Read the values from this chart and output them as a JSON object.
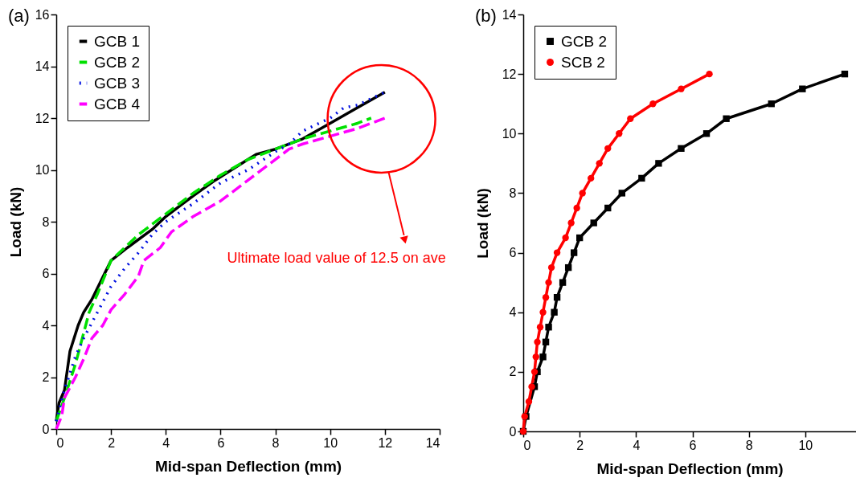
{
  "chart_data": [
    {
      "type": "line",
      "title": "(a)",
      "xlabel": "Mid-span Deflection (mm)",
      "ylabel": "Load (kN)",
      "xlim": [
        0,
        14
      ],
      "ylim": [
        0,
        16
      ],
      "xticks": [
        0,
        2,
        4,
        6,
        8,
        10,
        12,
        14
      ],
      "yticks": [
        0,
        2,
        4,
        6,
        8,
        10,
        12,
        14,
        16
      ],
      "legend": "top left",
      "annotations": [
        "Ultimate load value of 12.5 on ave"
      ],
      "series": [
        {
          "name": "GCB 1",
          "color": "#000000",
          "line_style": "solid",
          "x": [
            0,
            0.1,
            0.3,
            0.5,
            0.8,
            1,
            1.3,
            2,
            2.6,
            3.5,
            4,
            5,
            5.8,
            7,
            7.3,
            8,
            9,
            10,
            11,
            12
          ],
          "values": [
            0.3,
            1,
            1.5,
            3,
            4,
            4.5,
            5,
            6.5,
            7,
            7.7,
            8.2,
            9,
            9.6,
            10.4,
            10.6,
            10.8,
            11.2,
            11.8,
            12.4,
            13
          ]
        },
        {
          "name": "GCB 2",
          "color": "#00e000",
          "line_style": "dashed",
          "x": [
            0,
            0.3,
            0.7,
            1.2,
            1.5,
            2,
            2.5,
            3,
            4,
            5,
            6,
            7,
            8,
            9,
            10,
            11,
            11.5
          ],
          "values": [
            0.3,
            1.2,
            2.5,
            4.5,
            5.2,
            6.5,
            7,
            7.5,
            8.3,
            9.1,
            9.8,
            10.4,
            10.8,
            11.2,
            11.5,
            11.8,
            12
          ]
        },
        {
          "name": "GCB 3",
          "color": "#0010e0",
          "line_style": "dotted",
          "x": [
            0,
            0.3,
            0.7,
            1,
            1.5,
            2,
            2.5,
            3,
            3.5,
            4,
            5,
            6,
            7,
            8,
            8.5,
            9,
            10,
            10.5,
            11,
            12
          ],
          "values": [
            0.3,
            1.5,
            2.8,
            3.5,
            4.5,
            5.5,
            6.2,
            6.8,
            7.5,
            8,
            8.7,
            9.5,
            10,
            10.7,
            11,
            11.5,
            12,
            12.4,
            12.5,
            13
          ]
        },
        {
          "name": "GCB 4",
          "color": "#ff00ff",
          "line_style": "dashed",
          "x": [
            0,
            0.2,
            0.3,
            0.7,
            1,
            1.3,
            1.7,
            2,
            2.5,
            3,
            3.2,
            3.8,
            4.2,
            5,
            6,
            7,
            8,
            8.5,
            9,
            10,
            11,
            12
          ],
          "values": [
            0,
            0.5,
            1.2,
            2,
            2.7,
            3.5,
            4,
            4.6,
            5.2,
            5.9,
            6.5,
            7,
            7.6,
            8.2,
            8.8,
            9.6,
            10.4,
            10.8,
            11,
            11.3,
            11.6,
            12
          ]
        }
      ]
    },
    {
      "type": "line",
      "title": "(b)",
      "xlabel": "Mid-span Deflection (mm)",
      "ylabel": "Load (kN)",
      "xlim": [
        0,
        11.8
      ],
      "ylim": [
        0,
        14
      ],
      "xticks": [
        0,
        2,
        4,
        6,
        8,
        10
      ],
      "yticks": [
        0,
        2,
        4,
        6,
        8,
        10,
        12,
        14
      ],
      "legend": "top left",
      "series": [
        {
          "name": "GCB 2",
          "color": "#000000",
          "marker": "square",
          "x": [
            0,
            0.1,
            0.4,
            0.5,
            0.7,
            0.8,
            0.9,
            1.1,
            1.2,
            1.4,
            1.6,
            1.8,
            2,
            2.5,
            3,
            3.5,
            4.2,
            4.8,
            5.6,
            6.5,
            7.2,
            8.8,
            9.9,
            11.4
          ],
          "values": [
            0,
            0.5,
            1.5,
            2,
            2.5,
            3,
            3.5,
            4,
            4.5,
            5,
            5.5,
            6,
            6.5,
            7,
            7.5,
            8,
            8.5,
            9,
            9.5,
            10,
            10.5,
            11,
            11.5,
            12
          ]
        },
        {
          "name": "SCB 2",
          "color": "#ff0000",
          "marker": "circle",
          "x": [
            0,
            0.05,
            0.2,
            0.3,
            0.4,
            0.45,
            0.5,
            0.6,
            0.7,
            0.8,
            0.9,
            1,
            1.2,
            1.5,
            1.7,
            1.9,
            2.1,
            2.4,
            2.7,
            3,
            3.4,
            3.8,
            4.6,
            5.6,
            6.6
          ],
          "values": [
            0,
            0.5,
            1,
            1.5,
            2,
            2.5,
            3,
            3.5,
            4,
            4.5,
            5,
            5.5,
            6,
            6.5,
            7,
            7.5,
            8,
            8.5,
            9,
            9.5,
            10,
            10.5,
            11,
            11.5,
            12
          ]
        }
      ]
    }
  ]
}
